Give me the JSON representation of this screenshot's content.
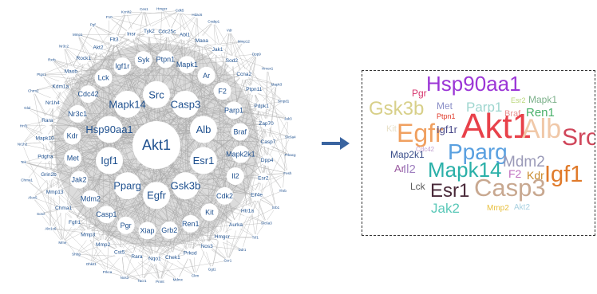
{
  "network": {
    "core": "Akt1",
    "ring1": [
      "Src",
      "Casp3",
      "Alb",
      "Esr1",
      "Gsk3b",
      "Egfr",
      "Pparg",
      "Igf1",
      "Hsp90aa1",
      "Mapk14"
    ],
    "ring2": [
      "Mapk1",
      "Ar",
      "F2",
      "Parp1",
      "Braf",
      "Mapk2k1",
      "Il2",
      "Cdk2",
      "Kit",
      "Ren1",
      "Grb2",
      "Xiap",
      "Pgr",
      "Casp1",
      "Mdm2",
      "Jak2",
      "Met",
      "Kdr",
      "Nr3c1",
      "Cdc42",
      "Lck",
      "Igf1r",
      "Syk",
      "Ptpn1"
    ],
    "ring3": [
      "Sod2",
      "Ccna2",
      "Ptpn11",
      "Pdpk1",
      "Zap70",
      "Casp7",
      "Dpp4",
      "Esr2",
      "Eif4e",
      "Htr1a",
      "Aurka",
      "Hmgcr",
      "Nos3",
      "Prkcd",
      "Chek1",
      "Nqo1",
      "Rara",
      "Cst5",
      "Mmp2",
      "Mmp3",
      "Fgfr1",
      "Chma1",
      "Mmp13",
      "Grin2b",
      "Pdgfra",
      "Mapk10",
      "Rara",
      "Nr1h4",
      "Kdm1a",
      "Maob",
      "Rock1",
      "Akt2",
      "Flt3",
      "Insr",
      "Tyk2",
      "Cdc25c",
      "Abl1",
      "Maoa",
      "Jak1"
    ],
    "ring4": [
      "Mapk3",
      "Smpd1",
      "Jak3",
      "Slc6a4",
      "Prkacg",
      "Fesh",
      "Thrb",
      "Srb1",
      "Slc6a3",
      "Tcf1",
      "Ddr1",
      "Gcr1",
      "Ggt1",
      "Ckm",
      "Mdmx",
      "Pnmt",
      "Tacr1",
      "Nos3",
      "Prkca",
      "Ohkit1",
      "Shbg",
      "Mme",
      "Akr1c6",
      "Sord",
      "Alox5",
      "Chrna1",
      "Tek",
      "Nr1h2",
      "Hnf1",
      "Glul",
      "Chrm2",
      "Ptgs1",
      "Rxrb",
      "Nr3c2",
      "Mmp1",
      "Pgf",
      "F10",
      "Kcnh2",
      "Ces1",
      "Hmgcr",
      "Cdk5",
      "Hdac6",
      "Crabp1",
      "Vdr",
      "Mmp12",
      "Dpp9",
      "Hmox1"
    ],
    "arrow_icon": "right-arrow-icon"
  },
  "word_cloud": [
    {
      "text": "Hsp90aa1",
      "color": "#9b35d6"
    },
    {
      "text": "Pgr",
      "color": "#d6336c"
    },
    {
      "text": "Gsk3b",
      "color": "#d8d08a"
    },
    {
      "text": "Met",
      "color": "#8b8fc7"
    },
    {
      "text": "Parp1",
      "color": "#9ed6cf"
    },
    {
      "text": "Mapk1",
      "color": "#7cb08a"
    },
    {
      "text": "Esr2",
      "color": "#b9d67a"
    },
    {
      "text": "Ptpn1",
      "color": "#e03a2a"
    },
    {
      "text": "Braf",
      "color": "#e89090"
    },
    {
      "text": "Ren1",
      "color": "#48b06a"
    },
    {
      "text": "Kit",
      "color": "#e8e0c8"
    },
    {
      "text": "Egfr",
      "color": "#f0a060"
    },
    {
      "text": "Igf1r",
      "color": "#4a4a8a"
    },
    {
      "text": "Akt1",
      "color": "#e8414a"
    },
    {
      "text": "Alb",
      "color": "#f0c8a8"
    },
    {
      "text": "Src",
      "color": "#d0465a"
    },
    {
      "text": "Pparg",
      "color": "#5aa0e0"
    },
    {
      "text": "Map2k1",
      "color": "#3a4e8a"
    },
    {
      "text": "Cdc42",
      "color": "#c0a0d0"
    },
    {
      "text": "Mapk14",
      "color": "#2ab0a8"
    },
    {
      "text": "Mdm2",
      "color": "#9a9ab8"
    },
    {
      "text": "Ar",
      "color": "#9a5aa0"
    },
    {
      "text": "Il2",
      "color": "#a080c0"
    },
    {
      "text": "F2",
      "color": "#c070c0"
    },
    {
      "text": "Kdr",
      "color": "#c88a2a"
    },
    {
      "text": "Igf1",
      "color": "#e07a2a"
    },
    {
      "text": "Lck",
      "color": "#5a5a5a"
    },
    {
      "text": "Esr1",
      "color": "#4a2a3a"
    },
    {
      "text": "Casp3",
      "color": "#c8a890"
    },
    {
      "text": "Jak2",
      "color": "#5ac8b8"
    },
    {
      "text": "Mmp2",
      "color": "#e8c040"
    },
    {
      "text": "Akt2",
      "color": "#a8d0e0"
    }
  ]
}
